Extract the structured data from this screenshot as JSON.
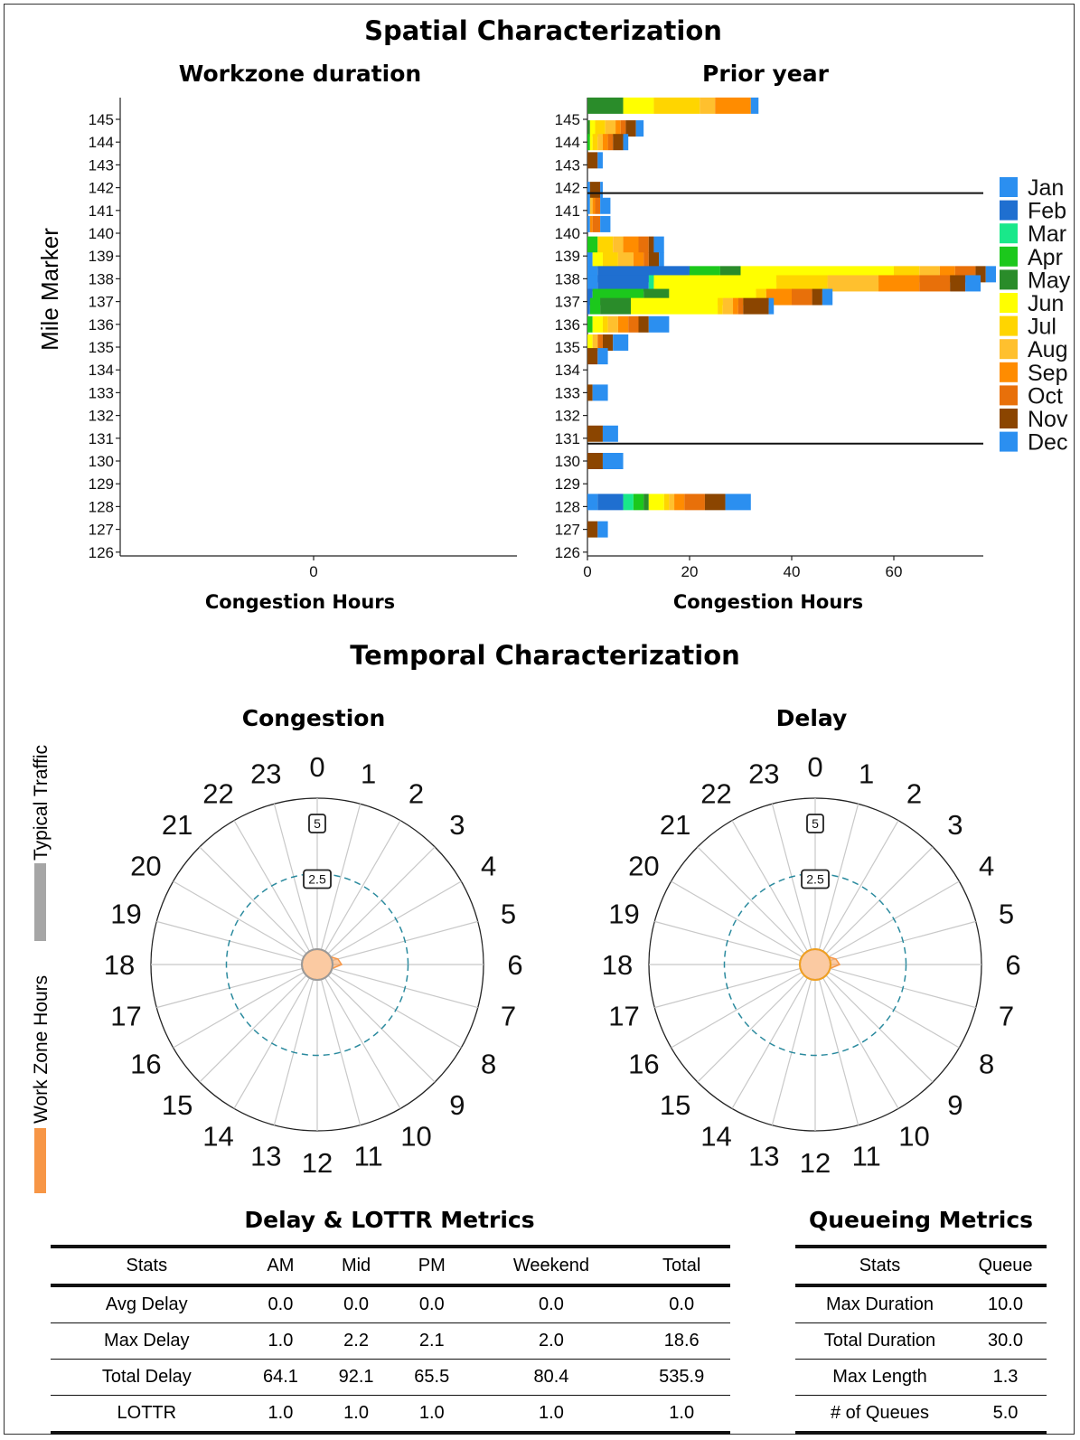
{
  "spatial": {
    "title": "Spatial Characterization",
    "ylabel": "Mile Marker",
    "miles": [
      "145",
      "144",
      "143",
      "142",
      "141",
      "140",
      "139",
      "138",
      "137",
      "136",
      "135",
      "134",
      "133",
      "132",
      "131",
      "130",
      "129",
      "128",
      "127",
      "126"
    ]
  },
  "temporal": {
    "title": "Temporal Characterization"
  },
  "side_labels": {
    "typical": "Typical Traffic",
    "workzone": "Work Zone Hours",
    "typical_color": "#a6a6a6",
    "workzone_color": "#f79646"
  },
  "legend": {
    "months": [
      "Jan",
      "Feb",
      "Mar",
      "Apr",
      "May",
      "Jun",
      "Jul",
      "Aug",
      "Sep",
      "Oct",
      "Nov",
      "Dec"
    ],
    "colors": [
      "#2b8ff0",
      "#1f6fd0",
      "#19e88a",
      "#1cc81c",
      "#2a8c2a",
      "#ffff00",
      "#ffd500",
      "#ffc02e",
      "#ff8c00",
      "#e8700a",
      "#8b4500",
      "#2b8ff0"
    ]
  },
  "chart_data": [
    {
      "type": "bar",
      "orientation": "horizontal",
      "title": "Workzone duration",
      "xlabel": "Congestion Hours",
      "ylabel": "Mile Marker",
      "categories": [
        "145",
        "144",
        "143",
        "142",
        "141",
        "140",
        "139",
        "138",
        "137",
        "136",
        "135",
        "134",
        "133",
        "132",
        "131",
        "130",
        "129",
        "128",
        "127",
        "126"
      ],
      "x_ticks": [
        "0"
      ],
      "series": []
    },
    {
      "type": "bar",
      "orientation": "horizontal",
      "stacked": true,
      "title": "Prior year",
      "xlabel": "Congestion Hours",
      "x_ticks": [
        0,
        20,
        40,
        60
      ],
      "xlim": [
        0,
        78
      ],
      "reference_lines_at_mile": [
        142,
        131
      ],
      "month_order": [
        "Jan",
        "Feb",
        "Mar",
        "Apr",
        "May",
        "Jun",
        "Jul",
        "Aug",
        "Sep",
        "Oct",
        "Nov",
        "Dec"
      ],
      "bars": [
        {
          "mile": 145.6,
          "h": [
            0,
            0,
            0,
            0,
            7,
            6,
            9,
            3,
            7,
            0,
            0,
            1.5
          ]
        },
        {
          "mile": 144.6,
          "h": [
            0,
            0,
            0,
            0,
            0.5,
            1,
            2,
            2,
            1,
            1,
            2,
            1.5
          ]
        },
        {
          "mile": 144.0,
          "h": [
            0,
            0,
            0,
            0.5,
            0,
            0.5,
            1,
            1,
            1,
            1,
            2,
            1
          ]
        },
        {
          "mile": 143.2,
          "h": [
            0,
            0,
            0,
            0,
            0,
            0,
            0,
            0,
            0,
            0,
            2,
            1
          ]
        },
        {
          "mile": 141.9,
          "h": [
            0.5,
            0,
            0,
            0,
            0,
            0,
            0,
            0,
            0,
            0,
            2,
            0.5
          ]
        },
        {
          "mile": 141.2,
          "h": [
            0.5,
            0,
            0,
            0,
            0,
            0,
            0,
            0.5,
            0.5,
            1,
            0,
            2
          ]
        },
        {
          "mile": 140.4,
          "h": [
            0.5,
            0,
            0,
            0,
            0,
            0,
            0,
            0,
            0.5,
            1.5,
            0,
            2
          ]
        },
        {
          "mile": 139.5,
          "h": [
            0,
            0,
            0,
            2,
            0,
            0,
            3,
            2,
            3,
            2,
            1,
            2
          ]
        },
        {
          "mile": 138.8,
          "h": [
            1,
            0,
            0,
            0,
            0,
            2,
            3,
            3,
            2,
            1,
            2,
            1
          ]
        },
        {
          "mile": 138.2,
          "h": [
            2,
            18,
            0,
            6,
            4,
            30,
            5,
            4,
            3,
            4,
            2,
            2
          ]
        },
        {
          "mile": 137.8,
          "h": [
            2,
            10,
            1,
            0,
            0,
            24,
            10,
            10,
            8,
            6,
            3,
            3
          ]
        },
        {
          "mile": 137.2,
          "h": [
            0,
            1,
            0,
            10,
            5,
            17,
            2,
            0,
            5,
            4,
            2,
            2
          ]
        },
        {
          "mile": 136.8,
          "h": [
            0,
            0.5,
            0,
            2,
            6,
            17,
            1,
            2,
            1,
            1,
            5,
            1
          ]
        },
        {
          "mile": 136.0,
          "h": [
            0,
            0,
            0,
            1,
            0,
            2,
            1,
            2,
            2,
            2,
            2,
            4
          ]
        },
        {
          "mile": 135.2,
          "h": [
            0,
            0,
            0,
            0,
            0,
            1,
            0,
            1,
            0,
            1,
            2,
            3
          ]
        },
        {
          "mile": 134.6,
          "h": [
            0,
            0,
            0,
            0,
            0,
            0,
            0,
            0,
            0,
            0,
            2,
            2
          ]
        },
        {
          "mile": 133.0,
          "h": [
            0,
            0,
            0,
            0,
            0,
            0,
            0,
            0,
            0,
            0,
            1,
            3
          ]
        },
        {
          "mile": 131.2,
          "h": [
            0,
            0,
            0,
            0,
            0,
            0,
            0,
            0,
            0,
            0,
            3,
            3
          ]
        },
        {
          "mile": 130.0,
          "h": [
            0,
            0,
            0,
            0,
            0,
            0,
            0,
            0,
            0,
            0,
            3,
            4
          ]
        },
        {
          "mile": 128.2,
          "h": [
            2,
            5,
            2,
            2,
            1,
            3,
            1,
            1,
            2,
            4,
            4,
            5
          ]
        },
        {
          "mile": 127.0,
          "h": [
            0,
            0,
            0,
            0,
            0,
            0,
            0,
            0,
            0,
            0,
            2,
            2
          ]
        }
      ]
    },
    {
      "type": "polar",
      "title": "Congestion",
      "hours": [
        "0",
        "1",
        "2",
        "3",
        "4",
        "5",
        "6",
        "7",
        "8",
        "9",
        "10",
        "11",
        "12",
        "13",
        "14",
        "15",
        "16",
        "17",
        "18",
        "19",
        "20",
        "21",
        "22",
        "23"
      ],
      "rmax": 5,
      "ring_labels": [
        "5",
        "2.5"
      ],
      "typical_traffic": [
        0,
        0,
        0,
        0,
        0,
        0,
        0,
        0,
        0,
        0,
        0,
        0,
        0,
        0,
        0,
        0,
        0,
        0,
        0,
        0,
        0,
        0,
        0,
        0
      ],
      "work_zone": [
        0,
        0,
        0,
        0,
        0,
        0.2,
        0.3,
        0,
        0,
        0,
        0,
        0,
        0,
        0,
        0,
        0,
        0,
        0,
        0,
        0,
        0,
        0,
        0,
        0
      ]
    },
    {
      "type": "polar",
      "title": "Delay",
      "hours": [
        "0",
        "1",
        "2",
        "3",
        "4",
        "5",
        "6",
        "7",
        "8",
        "9",
        "10",
        "11",
        "12",
        "13",
        "14",
        "15",
        "16",
        "17",
        "18",
        "19",
        "20",
        "21",
        "22",
        "23"
      ],
      "rmax": 5,
      "ring_labels": [
        "5",
        "2.5"
      ],
      "typical_traffic": [
        0,
        0,
        0,
        0,
        0,
        0,
        0,
        0,
        0,
        0,
        0,
        0,
        0,
        0,
        0,
        0,
        0,
        0,
        0,
        0,
        0,
        0,
        0,
        0
      ],
      "work_zone": [
        0,
        0,
        0,
        0,
        0,
        0.2,
        0.3,
        0,
        0,
        0,
        0,
        0,
        0,
        0,
        0,
        0,
        0,
        0,
        0,
        0,
        0,
        0,
        0,
        0
      ]
    },
    {
      "type": "table",
      "title": "Delay & LOTTR Metrics",
      "columns": [
        "Stats",
        "AM",
        "Mid",
        "PM",
        "Weekend",
        "Total"
      ],
      "rows": [
        [
          "Avg Delay",
          "0.0",
          "0.0",
          "0.0",
          "0.0",
          "0.0"
        ],
        [
          "Max Delay",
          "1.0",
          "2.2",
          "2.1",
          "2.0",
          "18.6"
        ],
        [
          "Total Delay",
          "64.1",
          "92.1",
          "65.5",
          "80.4",
          "535.9"
        ],
        [
          "LOTTR",
          "1.0",
          "1.0",
          "1.0",
          "1.0",
          "1.0"
        ]
      ]
    },
    {
      "type": "table",
      "title": "Queueing Metrics",
      "columns": [
        "Stats",
        "Queue"
      ],
      "rows": [
        [
          "Max Duration",
          "10.0"
        ],
        [
          "Total Duration",
          "30.0"
        ],
        [
          "Max Length",
          "1.3"
        ],
        [
          "# of Queues",
          "5.0"
        ]
      ]
    }
  ]
}
